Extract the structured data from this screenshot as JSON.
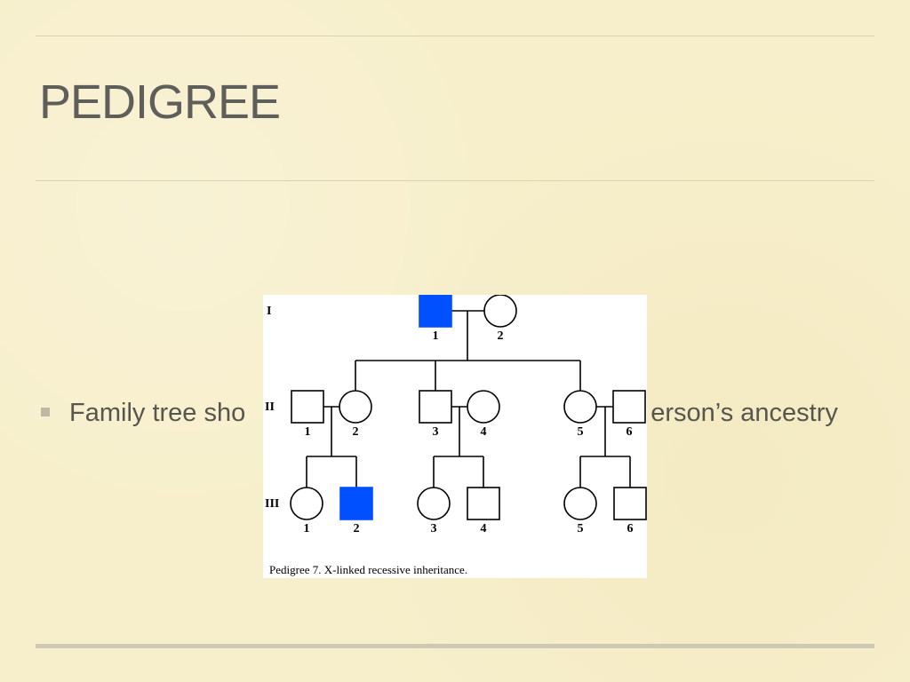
{
  "slide": {
    "title": "PEDIGREE",
    "bullet_part1": "Family tree sho",
    "bullet_part2": "erson’s ancestry"
  },
  "colors": {
    "affected": "#0050ff",
    "background": "#f7efcb"
  },
  "pedigree": {
    "caption": "Pedigree 7. X-linked recessive inheritance.",
    "generations": [
      "I",
      "II",
      "III"
    ],
    "individuals": [
      {
        "gen": "I",
        "num": "1",
        "sex": "male",
        "affected": true
      },
      {
        "gen": "I",
        "num": "2",
        "sex": "female",
        "affected": false
      },
      {
        "gen": "II",
        "num": "1",
        "sex": "male",
        "affected": false
      },
      {
        "gen": "II",
        "num": "2",
        "sex": "female",
        "affected": false
      },
      {
        "gen": "II",
        "num": "3",
        "sex": "male",
        "affected": false
      },
      {
        "gen": "II",
        "num": "4",
        "sex": "female",
        "affected": false
      },
      {
        "gen": "II",
        "num": "5",
        "sex": "female",
        "affected": false
      },
      {
        "gen": "II",
        "num": "6",
        "sex": "male",
        "affected": false
      },
      {
        "gen": "III",
        "num": "1",
        "sex": "female",
        "affected": false
      },
      {
        "gen": "III",
        "num": "2",
        "sex": "male",
        "affected": true
      },
      {
        "gen": "III",
        "num": "3",
        "sex": "female",
        "affected": false
      },
      {
        "gen": "III",
        "num": "4",
        "sex": "male",
        "affected": false
      },
      {
        "gen": "III",
        "num": "5",
        "sex": "female",
        "affected": false
      },
      {
        "gen": "III",
        "num": "6",
        "sex": "male",
        "affected": false
      }
    ]
  }
}
